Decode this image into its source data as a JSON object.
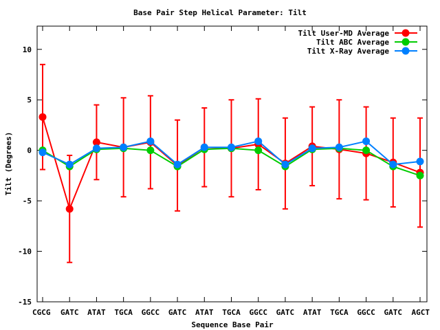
{
  "chart_data": {
    "type": "line",
    "title": "Base Pair Step Helical Parameter: Tilt",
    "xlabel": "Sequence Base Pair",
    "ylabel": "Tilt (Degrees)",
    "categories": [
      "CGCG",
      "GATC",
      "ATAT",
      "TGCA",
      "GGCC",
      "GATC",
      "ATAT",
      "TGCA",
      "GGCC",
      "GATC",
      "ATAT",
      "TGCA",
      "GGCC",
      "GATC",
      "AGCT"
    ],
    "ylim": [
      -15,
      12.3
    ],
    "yticks": [
      10,
      5,
      0,
      -5,
      -10,
      -15
    ],
    "legend_position": "top-right",
    "grid": false,
    "series": [
      {
        "name": "Tilt User-MD Average",
        "color": "#ff0000",
        "values": [
          3.3,
          -5.8,
          0.8,
          0.3,
          0.8,
          -1.5,
          0.3,
          0.2,
          0.6,
          -1.3,
          0.4,
          0.1,
          -0.3,
          -1.2,
          -2.2
        ],
        "errors": [
          5.2,
          5.3,
          3.7,
          4.9,
          4.6,
          4.5,
          3.9,
          4.8,
          4.5,
          4.5,
          3.9,
          4.9,
          4.6,
          4.4,
          5.4
        ]
      },
      {
        "name": "Tilt ABC Average",
        "color": "#00cc00",
        "values": [
          0.0,
          -1.6,
          0.1,
          0.2,
          0.0,
          -1.6,
          0.1,
          0.2,
          0.0,
          -1.6,
          0.1,
          0.2,
          0.0,
          -1.6,
          -2.5
        ]
      },
      {
        "name": "Tilt X-Ray Average",
        "color": "#0080ff",
        "values": [
          -0.2,
          -1.4,
          0.2,
          0.3,
          0.9,
          -1.4,
          0.3,
          0.3,
          0.9,
          -1.4,
          0.2,
          0.3,
          0.9,
          -1.4,
          -1.1
        ]
      }
    ]
  }
}
